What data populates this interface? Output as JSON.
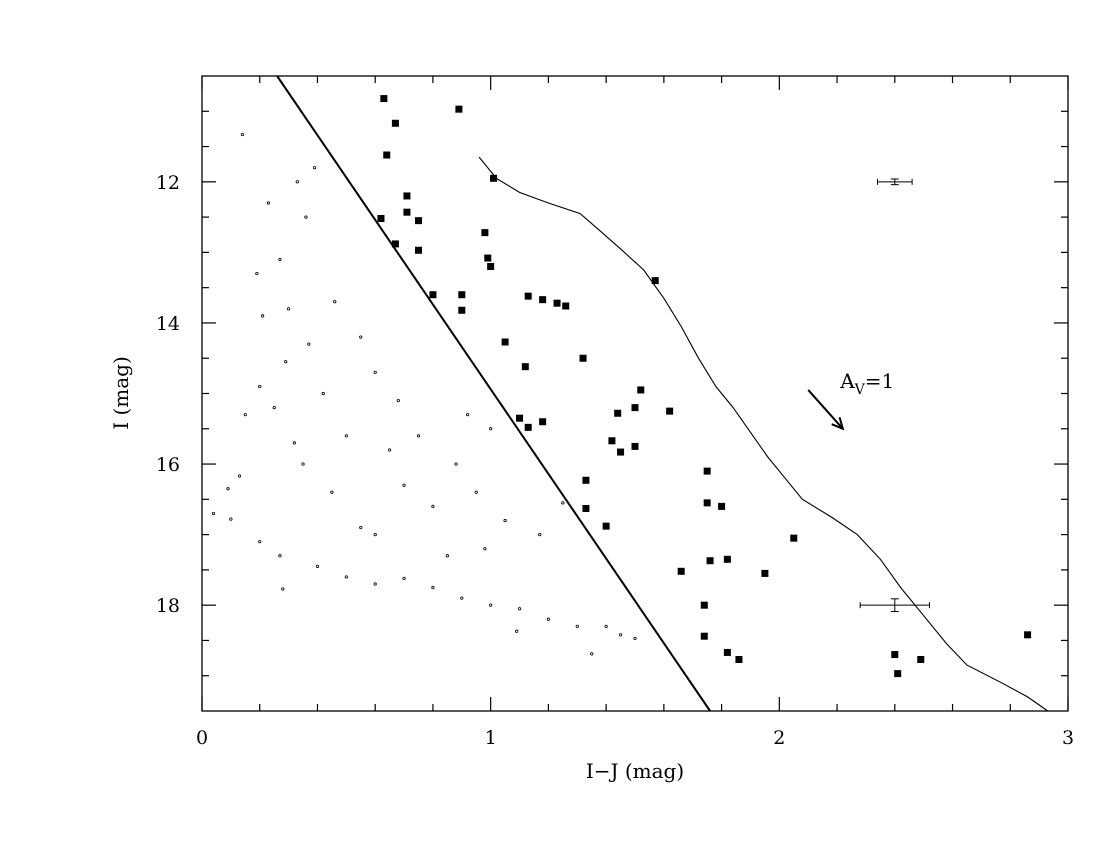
{
  "chart_data": {
    "type": "scatter",
    "title": "",
    "xlabel": "I−J (mag)",
    "ylabel": "I (mag)",
    "xlim": [
      0,
      3
    ],
    "ylim": [
      19.5,
      10.5
    ],
    "y_inverted": true,
    "x_ticks": [
      "0",
      "1",
      "2",
      "3"
    ],
    "x_tick_values": [
      0,
      1,
      2,
      3
    ],
    "y_ticks": [
      "12",
      "14",
      "16",
      "18"
    ],
    "y_tick_values": [
      12,
      14,
      16,
      18
    ],
    "grid": false,
    "legend": "none",
    "series": [
      {
        "marker": "filled-square",
        "values": [
          [
            0.63,
            10.82
          ],
          [
            0.89,
            10.97
          ],
          [
            0.67,
            11.17
          ],
          [
            0.64,
            11.62
          ],
          [
            1.01,
            11.95
          ],
          [
            0.71,
            12.2
          ],
          [
            0.62,
            12.52
          ],
          [
            0.71,
            12.43
          ],
          [
            0.75,
            12.55
          ],
          [
            0.67,
            12.88
          ],
          [
            0.75,
            12.97
          ],
          [
            0.98,
            12.72
          ],
          [
            0.99,
            13.08
          ],
          [
            1.0,
            13.2
          ],
          [
            1.57,
            13.4
          ],
          [
            0.8,
            13.6
          ],
          [
            0.9,
            13.6
          ],
          [
            0.9,
            13.82
          ],
          [
            1.13,
            13.62
          ],
          [
            1.18,
            13.67
          ],
          [
            1.23,
            13.72
          ],
          [
            1.26,
            13.76
          ],
          [
            1.05,
            14.27
          ],
          [
            1.32,
            14.5
          ],
          [
            1.12,
            14.62
          ],
          [
            1.52,
            14.95
          ],
          [
            1.5,
            15.2
          ],
          [
            1.44,
            15.28
          ],
          [
            1.62,
            15.25
          ],
          [
            1.1,
            15.35
          ],
          [
            1.18,
            15.4
          ],
          [
            1.13,
            15.48
          ],
          [
            1.42,
            15.67
          ],
          [
            1.5,
            15.75
          ],
          [
            1.45,
            15.83
          ],
          [
            1.75,
            16.1
          ],
          [
            1.33,
            16.23
          ],
          [
            1.75,
            16.55
          ],
          [
            1.8,
            16.6
          ],
          [
            1.33,
            16.63
          ],
          [
            1.4,
            16.88
          ],
          [
            2.05,
            17.05
          ],
          [
            1.82,
            17.35
          ],
          [
            1.76,
            17.37
          ],
          [
            1.66,
            17.52
          ],
          [
            1.95,
            17.55
          ],
          [
            1.74,
            18.0
          ],
          [
            1.74,
            18.44
          ],
          [
            1.82,
            18.67
          ],
          [
            1.86,
            18.77
          ],
          [
            2.4,
            18.7
          ],
          [
            2.49,
            18.77
          ],
          [
            2.41,
            18.97
          ],
          [
            2.86,
            18.42
          ]
        ]
      },
      {
        "marker": "small-dot",
        "values": [
          [
            0.14,
            11.33
          ],
          [
            0.39,
            11.8
          ],
          [
            0.33,
            12.0
          ],
          [
            0.23,
            12.3
          ],
          [
            0.36,
            12.5
          ],
          [
            0.19,
            13.3
          ],
          [
            0.27,
            13.1
          ],
          [
            0.21,
            13.9
          ],
          [
            0.29,
            14.55
          ],
          [
            0.2,
            14.9
          ],
          [
            0.15,
            15.3
          ],
          [
            0.32,
            15.7
          ],
          [
            0.13,
            16.17
          ],
          [
            0.09,
            16.35
          ],
          [
            0.04,
            16.7
          ],
          [
            0.1,
            16.78
          ],
          [
            0.2,
            17.1
          ],
          [
            0.27,
            17.3
          ],
          [
            0.28,
            17.77
          ],
          [
            0.4,
            17.45
          ],
          [
            0.5,
            17.6
          ],
          [
            0.6,
            17.7
          ],
          [
            0.7,
            17.62
          ],
          [
            0.8,
            17.75
          ],
          [
            0.9,
            17.9
          ],
          [
            1.0,
            18.0
          ],
          [
            1.1,
            18.05
          ],
          [
            1.09,
            18.37
          ],
          [
            1.2,
            18.2
          ],
          [
            1.3,
            18.3
          ],
          [
            1.35,
            18.69
          ],
          [
            1.4,
            18.3
          ],
          [
            1.45,
            18.42
          ],
          [
            1.5,
            18.47
          ],
          [
            0.46,
            13.7
          ],
          [
            0.55,
            14.2
          ],
          [
            0.6,
            14.7
          ],
          [
            0.68,
            15.1
          ],
          [
            0.75,
            15.6
          ],
          [
            0.88,
            16.0
          ],
          [
            0.95,
            16.4
          ],
          [
            1.05,
            16.8
          ],
          [
            1.17,
            17.0
          ],
          [
            1.25,
            16.55
          ],
          [
            1.0,
            15.5
          ],
          [
            0.92,
            15.3
          ],
          [
            0.98,
            17.2
          ],
          [
            0.85,
            17.3
          ],
          [
            0.6,
            17.0
          ],
          [
            0.45,
            16.4
          ],
          [
            0.5,
            15.6
          ],
          [
            0.42,
            15.0
          ],
          [
            0.37,
            14.3
          ],
          [
            0.3,
            13.8
          ],
          [
            0.55,
            16.9
          ],
          [
            0.7,
            16.3
          ],
          [
            0.8,
            16.6
          ],
          [
            0.65,
            15.8
          ],
          [
            0.35,
            16.0
          ],
          [
            0.25,
            15.2
          ]
        ]
      },
      {
        "marker": "line",
        "values": [
          [
            0.96,
            11.65
          ],
          [
            1.02,
            11.95
          ],
          [
            1.1,
            12.15
          ],
          [
            1.2,
            12.3
          ],
          [
            1.31,
            12.45
          ],
          [
            1.38,
            12.7
          ],
          [
            1.45,
            12.95
          ],
          [
            1.53,
            13.25
          ],
          [
            1.6,
            13.65
          ],
          [
            1.66,
            14.05
          ],
          [
            1.72,
            14.5
          ],
          [
            1.78,
            14.9
          ],
          [
            1.84,
            15.2
          ],
          [
            1.9,
            15.55
          ],
          [
            1.96,
            15.9
          ],
          [
            2.02,
            16.2
          ],
          [
            2.08,
            16.5
          ],
          [
            2.18,
            16.75
          ],
          [
            2.27,
            17.0
          ],
          [
            2.35,
            17.35
          ],
          [
            2.42,
            17.75
          ],
          [
            2.5,
            18.15
          ],
          [
            2.58,
            18.55
          ],
          [
            2.65,
            18.85
          ],
          [
            2.77,
            19.1
          ],
          [
            2.86,
            19.3
          ],
          [
            2.93,
            19.5
          ]
        ]
      },
      {
        "marker": "line",
        "values": [
          [
            0.26,
            10.5
          ],
          [
            1.76,
            19.5
          ]
        ]
      }
    ],
    "error_bars": [
      {
        "x": 2.4,
        "y": 12.0,
        "xerr": 0.06,
        "yerr": 0.04
      },
      {
        "x": 2.4,
        "y": 18.0,
        "xerr": 0.12,
        "yerr": 0.09
      }
    ],
    "annotations": [
      {
        "label_main": "A",
        "label_sub": "V",
        "label_rest": "=1",
        "arrow_from": [
          2.1,
          14.95
        ],
        "arrow_to": [
          2.22,
          15.5
        ]
      }
    ]
  }
}
